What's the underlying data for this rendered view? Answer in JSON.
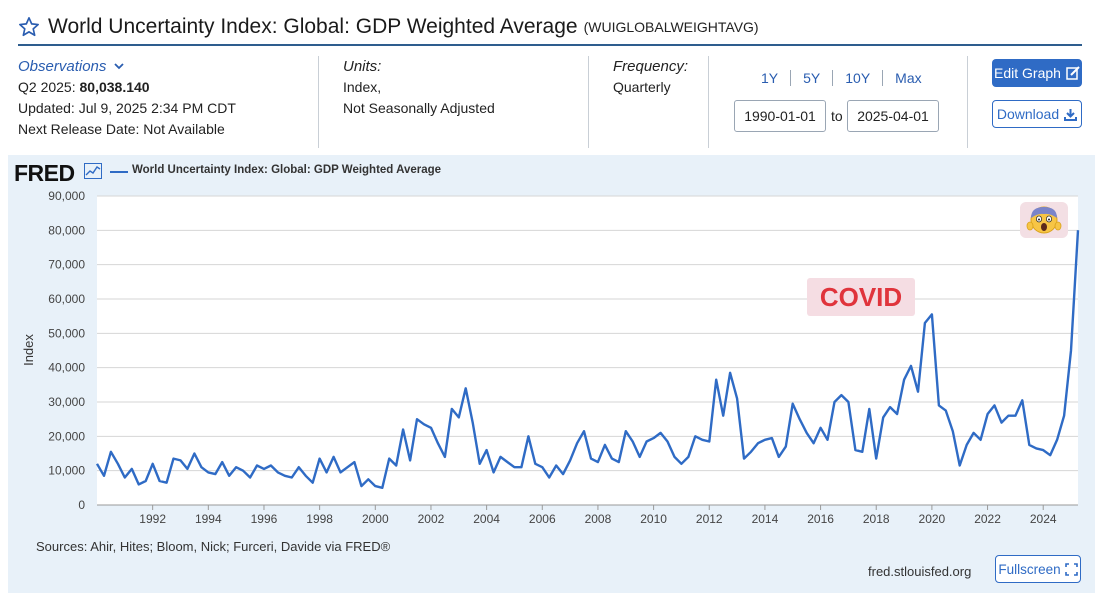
{
  "header": {
    "title": "World Uncertainty Index: Global: GDP Weighted Average",
    "series_id": "(WUIGLOBALWEIGHTAVG)"
  },
  "observations": {
    "link_label": "Observations",
    "latest_period": "Q2 2025:",
    "latest_value": "80,038.140",
    "updated": "Updated: Jul 9, 2025 2:34 PM CDT",
    "next_release": "Next Release Date: Not Available"
  },
  "units": {
    "label": "Units:",
    "line1": "Index,",
    "line2": "Not Seasonally Adjusted"
  },
  "frequency": {
    "label": "Frequency:",
    "value": "Quarterly"
  },
  "range": {
    "buttons": [
      "1Y",
      "5Y",
      "10Y",
      "Max"
    ],
    "start": "1990-01-01",
    "to_label": "to",
    "end": "2025-04-01"
  },
  "actions": {
    "edit_label": "Edit Graph",
    "download_label": "Download",
    "fullscreen_label": "Fullscreen"
  },
  "footer": {
    "sources": "Sources: Ahir, Hites; Bloom, Nick; Furceri, Davide via FRED®",
    "site": "fred.stlouisfed.org"
  },
  "brand": {
    "logo_text": "FRED",
    "line_color": "#2f6bc5",
    "panel_color": "#e8f1f9",
    "accent_red": "#e0343c"
  },
  "annotations": {
    "covid_label": "COVID",
    "emoji_icon": "screaming-face-icon"
  },
  "chart_data": {
    "type": "line",
    "title": "World Uncertainty Index: Global: GDP Weighted Average",
    "ylabel": "Index",
    "xlabel": "",
    "ylim": [
      0,
      90000
    ],
    "xlim": [
      1990.0,
      2025.25
    ],
    "y_ticks": [
      0,
      10000,
      20000,
      30000,
      40000,
      50000,
      60000,
      70000,
      80000,
      90000
    ],
    "y_tick_labels": [
      "0",
      "10,000",
      "20,000",
      "30,000",
      "40,000",
      "50,000",
      "60,000",
      "70,000",
      "80,000",
      "90,000"
    ],
    "x_ticks": [
      1992,
      1994,
      1996,
      1998,
      2000,
      2002,
      2004,
      2006,
      2008,
      2010,
      2012,
      2014,
      2016,
      2018,
      2020,
      2022,
      2024
    ],
    "x_tick_labels": [
      "1992",
      "1994",
      "1996",
      "1998",
      "2000",
      "2002",
      "2004",
      "2006",
      "2008",
      "2010",
      "2012",
      "2014",
      "2016",
      "2018",
      "2020",
      "2022",
      "2024"
    ],
    "grid": true,
    "series": [
      {
        "name": "World Uncertainty Index: Global: GDP Weighted Average",
        "x": [
          1990.0,
          1990.25,
          1990.5,
          1990.75,
          1991.0,
          1991.25,
          1991.5,
          1991.75,
          1992.0,
          1992.25,
          1992.5,
          1992.75,
          1993.0,
          1993.25,
          1993.5,
          1993.75,
          1994.0,
          1994.25,
          1994.5,
          1994.75,
          1995.0,
          1995.25,
          1995.5,
          1995.75,
          1996.0,
          1996.25,
          1996.5,
          1996.75,
          1997.0,
          1997.25,
          1997.5,
          1997.75,
          1998.0,
          1998.25,
          1998.5,
          1998.75,
          1999.0,
          1999.25,
          1999.5,
          1999.75,
          2000.0,
          2000.25,
          2000.5,
          2000.75,
          2001.0,
          2001.25,
          2001.5,
          2001.75,
          2002.0,
          2002.25,
          2002.5,
          2002.75,
          2003.0,
          2003.25,
          2003.5,
          2003.75,
          2004.0,
          2004.25,
          2004.5,
          2004.75,
          2005.0,
          2005.25,
          2005.5,
          2005.75,
          2006.0,
          2006.25,
          2006.5,
          2006.75,
          2007.0,
          2007.25,
          2007.5,
          2007.75,
          2008.0,
          2008.25,
          2008.5,
          2008.75,
          2009.0,
          2009.25,
          2009.5,
          2009.75,
          2010.0,
          2010.25,
          2010.5,
          2010.75,
          2011.0,
          2011.25,
          2011.5,
          2011.75,
          2012.0,
          2012.25,
          2012.5,
          2012.75,
          2013.0,
          2013.25,
          2013.5,
          2013.75,
          2014.0,
          2014.25,
          2014.5,
          2014.75,
          2015.0,
          2015.25,
          2015.5,
          2015.75,
          2016.0,
          2016.25,
          2016.5,
          2016.75,
          2017.0,
          2017.25,
          2017.5,
          2017.75,
          2018.0,
          2018.25,
          2018.5,
          2018.75,
          2019.0,
          2019.25,
          2019.5,
          2019.75,
          2020.0,
          2020.25,
          2020.5,
          2020.75,
          2021.0,
          2021.25,
          2021.5,
          2021.75,
          2022.0,
          2022.25,
          2022.5,
          2022.75,
          2023.0,
          2023.25,
          2023.5,
          2023.75,
          2024.0,
          2024.25,
          2024.5,
          2024.75,
          2025.0,
          2025.25
        ],
        "values": [
          12000,
          8500,
          15500,
          12000,
          8000,
          10500,
          6000,
          7000,
          12000,
          7000,
          6500,
          13500,
          13000,
          10500,
          15000,
          11000,
          9500,
          9000,
          12500,
          8500,
          11000,
          10000,
          8000,
          11500,
          10500,
          11500,
          9500,
          8500,
          8000,
          11000,
          8500,
          6500,
          13500,
          9500,
          14000,
          9500,
          11000,
          12500,
          5500,
          7500,
          5500,
          5000,
          13500,
          11500,
          22000,
          13000,
          25000,
          23500,
          22500,
          18000,
          14000,
          28000,
          25500,
          34000,
          24000,
          12000,
          16000,
          9500,
          14000,
          12500,
          11000,
          11000,
          20000,
          12000,
          11000,
          8000,
          11500,
          9000,
          13000,
          18000,
          21500,
          13500,
          12500,
          17500,
          13500,
          12500,
          21500,
          18500,
          14000,
          18500,
          19500,
          21000,
          18500,
          14000,
          12000,
          14000,
          20000,
          19000,
          18500,
          36500,
          26000,
          38500,
          31000,
          13500,
          15500,
          18000,
          19000,
          19500,
          14000,
          17000,
          29500,
          25000,
          21000,
          18000,
          22500,
          19000,
          30000,
          32000,
          30000,
          16000,
          15500,
          28000,
          13500,
          25500,
          28500,
          26500,
          36500,
          40500,
          33000,
          53000,
          55500,
          29000,
          27500,
          21500,
          11500,
          17500,
          21000,
          19000,
          26500,
          29000,
          24000,
          26000,
          26000,
          30500,
          17500,
          16500,
          16000,
          14500,
          19000,
          26000,
          45000,
          80038
        ]
      }
    ]
  }
}
